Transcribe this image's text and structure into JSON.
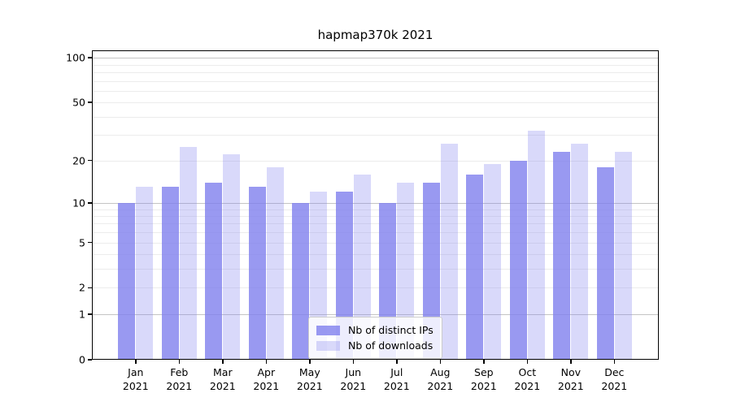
{
  "title": "hapmap370k 2021",
  "chart_data": {
    "type": "bar",
    "title": "hapmap370k 2021",
    "categories": [
      "Jan 2021",
      "Feb 2021",
      "Mar 2021",
      "Apr 2021",
      "May 2021",
      "Jun 2021",
      "Jul 2021",
      "Aug 2021",
      "Sep 2021",
      "Oct 2021",
      "Nov 2021",
      "Dec 2021"
    ],
    "series": [
      {
        "name": "Nb of distinct IPs",
        "color": "rgba(128,128,238,0.8)",
        "values": [
          10,
          13,
          14,
          13,
          10,
          12,
          10,
          14,
          16,
          20,
          23,
          18
        ]
      },
      {
        "name": "Nb of downloads",
        "color": "rgba(128,128,238,0.3)",
        "values": [
          13,
          25,
          22,
          18,
          12,
          16,
          14,
          26,
          19,
          32,
          26,
          23
        ]
      }
    ],
    "xlabel": "",
    "ylabel": "",
    "yscale": "log1p",
    "ylim": [
      0,
      112
    ],
    "yticks_labeled": [
      0,
      1,
      2,
      5,
      10,
      20,
      50,
      100
    ],
    "gridlines_dark": [
      1,
      10,
      100
    ],
    "gridlines_light": [
      2,
      3,
      4,
      5,
      6,
      7,
      8,
      9,
      20,
      30,
      40,
      50,
      60,
      70,
      80,
      90
    ],
    "grid": true,
    "legend_position": "lower center"
  },
  "colors": {
    "grid_dark": "#c4c4c4",
    "grid_light": "#ececec",
    "spine": "#000000",
    "bar_base": "#8080ee",
    "background": "#ffffff"
  }
}
